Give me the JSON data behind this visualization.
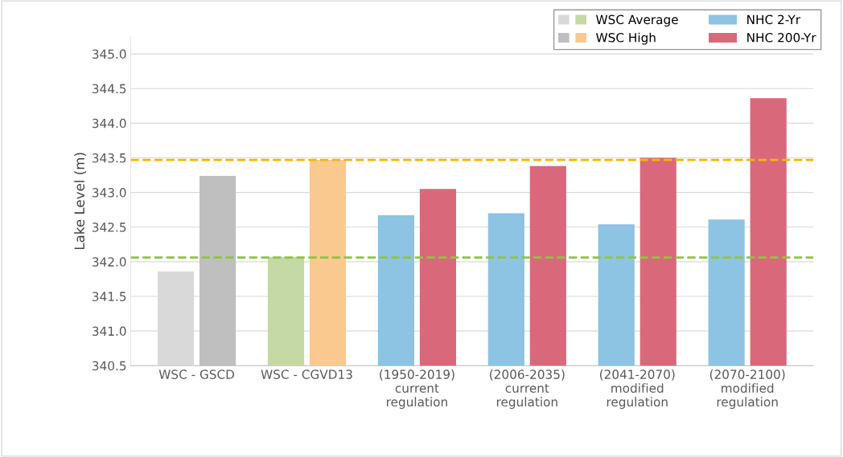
{
  "chart_data": {
    "type": "bar",
    "ylabel": "Lake Level (m)",
    "categories": [
      "WSC - GSCD",
      "WSC - CGVD13",
      "(1950-2019)\ncurrent\nregulation",
      "(2006-2035)\ncurrent\nregulation",
      "(2041-2070)\nmodified\nregulation",
      "(2070-2100)\nmodified\nregulation"
    ],
    "series": [
      {
        "name": "WSC Average",
        "colors": [
          "#d9d9d9",
          "#c5d9a5",
          null,
          null,
          null,
          null
        ],
        "values": [
          341.86,
          342.07,
          null,
          null,
          null,
          null
        ]
      },
      {
        "name": "WSC High",
        "colors": [
          "#bfbfbf",
          "#f9c98f",
          null,
          null,
          null,
          null
        ],
        "values": [
          343.24,
          343.47,
          null,
          null,
          null,
          null
        ]
      },
      {
        "name": "NHC 2-Yr",
        "color": "#8dc3e3",
        "values": [
          null,
          null,
          342.67,
          342.7,
          342.54,
          342.61
        ]
      },
      {
        "name": "NHC 200-Yr",
        "color": "#d9697a",
        "values": [
          null,
          null,
          343.05,
          343.38,
          343.5,
          344.36
        ]
      }
    ],
    "ylim": [
      340.5,
      345.25
    ],
    "yticks": [
      340.5,
      {
        "value": 341,
        "label": "341.0"
      },
      341.5,
      {
        "value": 342,
        "label": "342.0"
      },
      342.5,
      {
        "value": 343,
        "label": "343.0"
      },
      343.5,
      {
        "value": 344,
        "label": "344.0"
      },
      344.5,
      {
        "value": 345,
        "label": "345.0"
      }
    ],
    "ref_lines": [
      {
        "axis": "y",
        "value": 343.47,
        "color": "#f2b705",
        "line_style": "dashed"
      },
      {
        "axis": "y",
        "value": 342.06,
        "color": "#8cc63f",
        "line_style": "dashed"
      }
    ],
    "grid": "y",
    "legend": "top right"
  }
}
